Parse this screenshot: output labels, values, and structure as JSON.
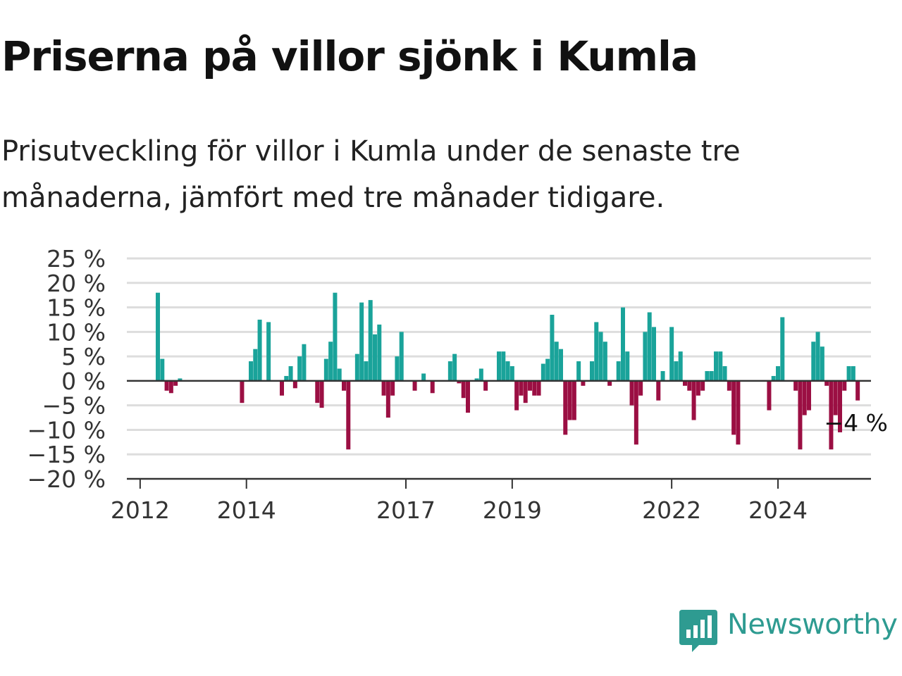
{
  "title": "Priserna på villor sjönk i Kumla",
  "subtitle": "Prisutveckling för villor i Kumla under de senaste tre månaderna, jämfört med tre månader tidigare.",
  "logo": {
    "text": "Newsworthy",
    "icon": "newsworthy-logo-icon"
  },
  "colors": {
    "positive": "#1aa39a",
    "negative": "#9b0f43",
    "grid": "#dddddd",
    "axis": "#333333"
  },
  "chart_data": {
    "type": "bar",
    "title": "Priserna på villor sjönk i Kumla",
    "subtitle": "Prisutveckling för villor i Kumla under de senaste tre månaderna, jämfört med tre månader tidigare.",
    "xlabel": "",
    "ylabel": "",
    "x_range": [
      "2011-10",
      "2025-10"
    ],
    "ylim": [
      -20,
      25
    ],
    "yticks": [
      25,
      20,
      15,
      10,
      5,
      0,
      -5,
      -10,
      -15,
      -20
    ],
    "ytick_labels": [
      "25 %",
      "20 %",
      "15 %",
      "10 %",
      "5 %",
      "0 %",
      "−5 %",
      "−10 %",
      "−15 %",
      "−20 %"
    ],
    "xticks": [
      "2012-01",
      "2014-01",
      "2017-01",
      "2019-01",
      "2022-01",
      "2024-01"
    ],
    "xtick_labels": [
      "2012",
      "2014",
      "2017",
      "2019",
      "2022",
      "2024"
    ],
    "grid": true,
    "legend": "none",
    "annotation": {
      "date": "2025-01",
      "text": "−4 %"
    },
    "series": [
      {
        "values": [
          [
            "2012-05",
            18
          ],
          [
            "2012-06",
            4.5
          ],
          [
            "2012-07",
            -2
          ],
          [
            "2012-08",
            -2.5
          ],
          [
            "2012-09",
            -1
          ],
          [
            "2012-10",
            0.5
          ],
          [
            "2013-12",
            -4.5
          ],
          [
            "2014-02",
            4
          ],
          [
            "2014-03",
            6.5
          ],
          [
            "2014-04",
            12.5
          ],
          [
            "2014-06",
            12
          ],
          [
            "2014-09",
            -3
          ],
          [
            "2014-10",
            1
          ],
          [
            "2014-11",
            3
          ],
          [
            "2014-12",
            -1.5
          ],
          [
            "2015-01",
            5
          ],
          [
            "2015-02",
            7.5
          ],
          [
            "2015-05",
            -4.5
          ],
          [
            "2015-06",
            -5.5
          ],
          [
            "2015-07",
            4.5
          ],
          [
            "2015-08",
            8
          ],
          [
            "2015-09",
            18
          ],
          [
            "2015-10",
            2.5
          ],
          [
            "2015-11",
            -2
          ],
          [
            "2015-12",
            -14
          ],
          [
            "2016-02",
            5.5
          ],
          [
            "2016-03",
            16
          ],
          [
            "2016-04",
            4
          ],
          [
            "2016-05",
            16.5
          ],
          [
            "2016-06",
            9.5
          ],
          [
            "2016-07",
            11.5
          ],
          [
            "2016-08",
            -3
          ],
          [
            "2016-09",
            -7.5
          ],
          [
            "2016-10",
            -3
          ],
          [
            "2016-11",
            5
          ],
          [
            "2016-12",
            10
          ],
          [
            "2017-03",
            -2
          ],
          [
            "2017-05",
            1.5
          ],
          [
            "2017-07",
            -2.5
          ],
          [
            "2017-11",
            4
          ],
          [
            "2017-12",
            5.5
          ],
          [
            "2018-01",
            -0.5
          ],
          [
            "2018-02",
            -3.5
          ],
          [
            "2018-03",
            -6.5
          ],
          [
            "2018-05",
            0.5
          ],
          [
            "2018-06",
            2.5
          ],
          [
            "2018-07",
            -2
          ],
          [
            "2018-10",
            6
          ],
          [
            "2018-11",
            6
          ],
          [
            "2018-12",
            4
          ],
          [
            "2019-01",
            3
          ],
          [
            "2019-02",
            -6
          ],
          [
            "2019-03",
            -3
          ],
          [
            "2019-04",
            -4.5
          ],
          [
            "2019-05",
            -2
          ],
          [
            "2019-06",
            -3
          ],
          [
            "2019-07",
            -3
          ],
          [
            "2019-08",
            3.5
          ],
          [
            "2019-09",
            4.5
          ],
          [
            "2019-10",
            13.5
          ],
          [
            "2019-11",
            8
          ],
          [
            "2019-12",
            6.5
          ],
          [
            "2020-01",
            -11
          ],
          [
            "2020-02",
            -8
          ],
          [
            "2020-03",
            -8
          ],
          [
            "2020-04",
            4
          ],
          [
            "2020-05",
            -1
          ],
          [
            "2020-07",
            4
          ],
          [
            "2020-08",
            12
          ],
          [
            "2020-09",
            10
          ],
          [
            "2020-10",
            8
          ],
          [
            "2020-11",
            -1
          ],
          [
            "2021-01",
            4
          ],
          [
            "2021-02",
            15
          ],
          [
            "2021-03",
            6
          ],
          [
            "2021-04",
            -5
          ],
          [
            "2021-05",
            -13
          ],
          [
            "2021-06",
            -3
          ],
          [
            "2021-07",
            10
          ],
          [
            "2021-08",
            14
          ],
          [
            "2021-09",
            11
          ],
          [
            "2021-10",
            -4
          ],
          [
            "2021-11",
            2
          ],
          [
            "2022-01",
            11
          ],
          [
            "2022-02",
            4
          ],
          [
            "2022-03",
            6
          ],
          [
            "2022-04",
            -1
          ],
          [
            "2022-05",
            -2
          ],
          [
            "2022-06",
            -8
          ],
          [
            "2022-07",
            -3
          ],
          [
            "2022-08",
            -2
          ],
          [
            "2022-09",
            2
          ],
          [
            "2022-10",
            2
          ],
          [
            "2022-11",
            6
          ],
          [
            "2022-12",
            6
          ],
          [
            "2023-01",
            3
          ],
          [
            "2023-02",
            -2
          ],
          [
            "2023-03",
            -11
          ],
          [
            "2023-04",
            -13
          ],
          [
            "2023-11",
            -6
          ],
          [
            "2023-12",
            1
          ],
          [
            "2024-01",
            3
          ],
          [
            "2024-02",
            13
          ],
          [
            "2024-05",
            -2
          ],
          [
            "2024-06",
            -14
          ],
          [
            "2024-07",
            -7
          ],
          [
            "2024-08",
            -6
          ],
          [
            "2024-09",
            8
          ],
          [
            "2024-10",
            10
          ],
          [
            "2024-11",
            7
          ],
          [
            "2024-12",
            -1
          ],
          [
            "2025-01",
            -14
          ],
          [
            "2025-02",
            -7
          ],
          [
            "2025-03",
            -10.5
          ],
          [
            "2025-04",
            -2
          ],
          [
            "2025-05",
            3
          ],
          [
            "2025-06",
            3
          ],
          [
            "2025-07",
            -4
          ]
        ]
      }
    ]
  }
}
